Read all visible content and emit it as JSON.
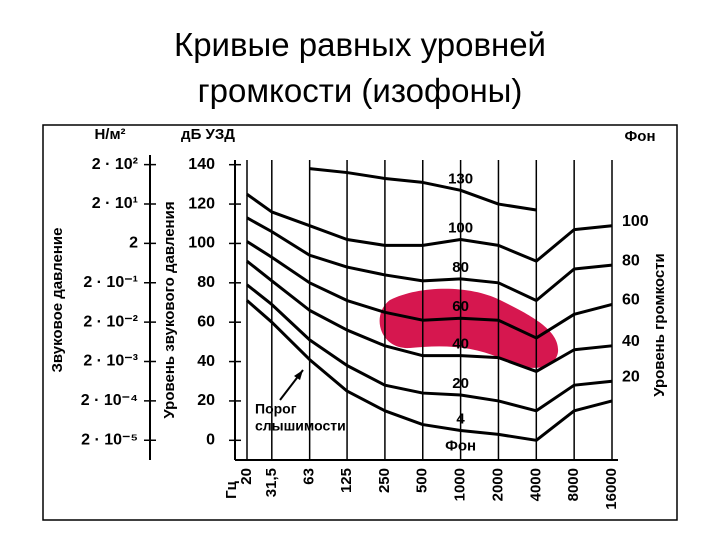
{
  "title": "Кривые равных уровней громкости (изофоны)",
  "chart_data": {
    "type": "line",
    "xlabel": "Гц",
    "ylabel": "Уровень звукового давления",
    "y_unit": "дБ УЗД",
    "y2label": "Звуковое давление",
    "y2_unit": "Н/м²",
    "right_axis_label": "Уровень громкости",
    "right_unit": "Фон",
    "curve_unit": "Фон",
    "annotation": [
      "Порог",
      "слышимости"
    ],
    "x": [
      20,
      31.5,
      63,
      125,
      250,
      500,
      1000,
      2000,
      4000,
      8000,
      16000
    ],
    "xscale": "log",
    "xlim": [
      20,
      16000
    ],
    "xticks": [
      20,
      {
        "value": 31.5,
        "label": "31,5"
      },
      63,
      125,
      250,
      500,
      1000,
      2000,
      4000,
      8000,
      16000
    ],
    "ylim": [
      -10,
      150
    ],
    "yticks": [
      0,
      20,
      40,
      60,
      80,
      100,
      120,
      140
    ],
    "y2scale": "log",
    "y2lim": [
      6.3e-06,
      630
    ],
    "y2ticks": [
      {
        "value": 200,
        "label": "2 · 10²"
      },
      {
        "value": 20,
        "label": "2 · 10¹"
      },
      2,
      {
        "value": 0.2,
        "label": "2 · 10⁻¹"
      },
      {
        "value": 0.02,
        "label": "2 · 10⁻²"
      },
      {
        "value": 0.002,
        "label": "2 · 10⁻³"
      },
      {
        "value": 0.0002,
        "label": "2 · 10⁻⁴"
      },
      {
        "value": 2e-05,
        "label": "2 · 10⁻⁵"
      }
    ],
    "grid": "x",
    "series": [
      {
        "name": "130",
        "color": "#000000",
        "values": [
          null,
          null,
          138,
          136,
          133,
          131,
          127,
          120,
          117,
          null,
          null
        ]
      },
      {
        "name": "100",
        "right_label": 100,
        "color": "#000000",
        "values": [
          125,
          116,
          109,
          102,
          99,
          99,
          102,
          99,
          91,
          107,
          109
        ]
      },
      {
        "name": "80",
        "right_label": 80,
        "color": "#000000",
        "values": [
          113,
          106,
          94,
          88,
          84,
          81,
          82,
          80,
          71,
          87,
          89
        ]
      },
      {
        "name": "60",
        "right_label": 60,
        "color": "#000000",
        "values": [
          101,
          93,
          80,
          71,
          65,
          61,
          62,
          61,
          52,
          64,
          69
        ]
      },
      {
        "name": "40",
        "right_label": 40,
        "color": "#000000",
        "values": [
          91,
          81,
          66,
          56,
          48,
          43,
          43,
          42,
          35,
          46,
          48
        ]
      },
      {
        "name": "20",
        "right_label": 20,
        "color": "#000000",
        "values": [
          79,
          69,
          51,
          38,
          28,
          24,
          23,
          20,
          15,
          28,
          30
        ]
      },
      {
        "name": "4",
        "color": "#000000",
        "values": [
          71,
          60,
          41,
          25,
          15,
          8,
          5,
          3,
          0,
          15,
          20
        ]
      }
    ]
  }
}
